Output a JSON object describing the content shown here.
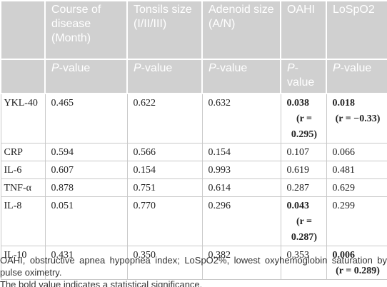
{
  "table": {
    "columns": [
      "",
      "Course of disease (Month)",
      "Tonsils size (I/II/III)",
      "Adenoid size (A/N)",
      "OAHI",
      "LoSpO2"
    ],
    "subheader": [
      "P-value",
      "P-value",
      "P-value",
      "P-value",
      "P-value"
    ],
    "rows": [
      {
        "label": "YKL-40",
        "cells": [
          {
            "value": "0.465"
          },
          {
            "value": "0.622"
          },
          {
            "value": "0.632"
          },
          {
            "value": "0.038",
            "r": "(r = 0.295)",
            "bold": true
          },
          {
            "value": "0.018",
            "r": "(r = −0.33)",
            "bold": true
          }
        ]
      },
      {
        "label": "CRP",
        "cells": [
          {
            "value": "0.594"
          },
          {
            "value": "0.566"
          },
          {
            "value": "0.154"
          },
          {
            "value": "0.107"
          },
          {
            "value": "0.066"
          }
        ]
      },
      {
        "label": "IL-6",
        "cells": [
          {
            "value": "0.607"
          },
          {
            "value": "0.154"
          },
          {
            "value": "0.993"
          },
          {
            "value": "0.619"
          },
          {
            "value": "0.481"
          }
        ]
      },
      {
        "label": "TNF-α",
        "cells": [
          {
            "value": "0.878"
          },
          {
            "value": "0.751"
          },
          {
            "value": "0.614"
          },
          {
            "value": "0.287"
          },
          {
            "value": "0.629"
          }
        ]
      },
      {
        "label": "IL-8",
        "cells": [
          {
            "value": "0.051"
          },
          {
            "value": "0.770"
          },
          {
            "value": "0.296"
          },
          {
            "value": "0.043",
            "r": "(r = 0.287)",
            "bold": true
          },
          {
            "value": "0.299"
          }
        ]
      },
      {
        "label": "IL-10",
        "cells": [
          {
            "value": "0.431"
          },
          {
            "value": "0.350"
          },
          {
            "value": "0.382"
          },
          {
            "value": "0.353"
          },
          {
            "value": "0.006",
            "r": "(r = 0.289)",
            "bold": true
          }
        ]
      }
    ]
  },
  "footnotes": [
    "OAHI, obstructive apnea hypopnea index; LoSpO2%, lowest oxyhemoglobin saturation by pulse oximetry.",
    "The bold value indicates a statistical significance."
  ]
}
